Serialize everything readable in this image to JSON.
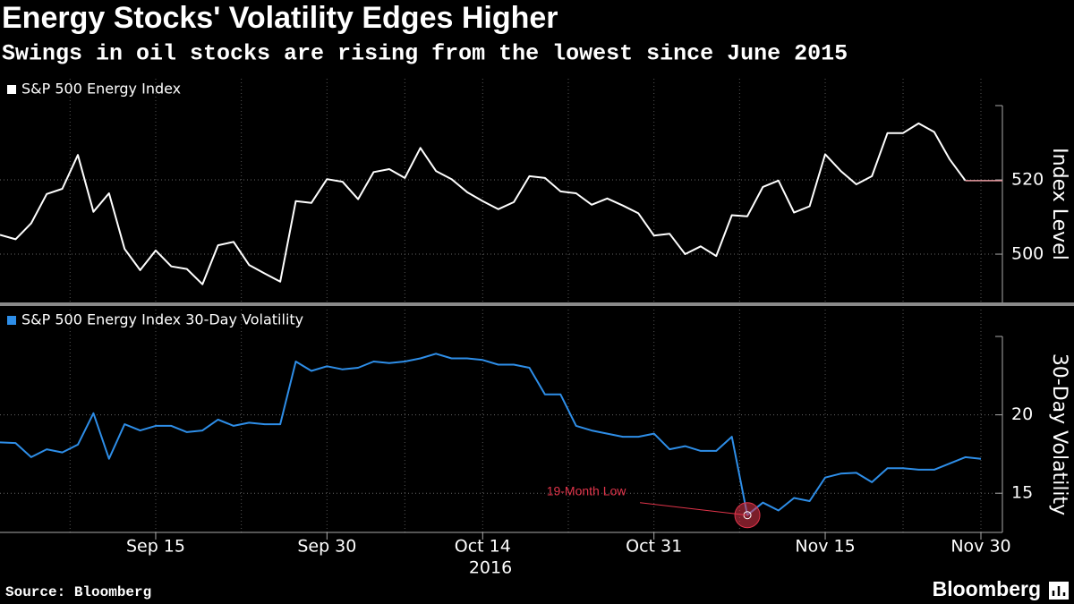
{
  "title": "Energy Stocks' Volatility Edges Higher",
  "subtitle": "Swings in oil stocks are rising from the lowest since June 2015",
  "source": "Source: Bloomberg",
  "brand": "Bloomberg",
  "chart_data": [
    {
      "type": "line",
      "ylabel": "Index Level",
      "categories": [
        null,
        null,
        null,
        null,
        null,
        null,
        null,
        null,
        null,
        null,
        "Sep 15",
        null,
        null,
        null,
        null,
        null,
        null,
        null,
        null,
        null,
        null,
        "Sep 30",
        null,
        null,
        null,
        null,
        null,
        null,
        null,
        null,
        null,
        "Oct 14",
        null,
        null,
        null,
        null,
        null,
        null,
        null,
        null,
        null,
        null,
        "Oct 31",
        null,
        null,
        null,
        null,
        null,
        null,
        null,
        null,
        null,
        null,
        "Nov 15",
        null,
        null,
        null,
        null,
        null,
        null,
        null,
        null,
        null,
        "Nov 30"
      ],
      "series": [
        {
          "name": "S&P 500 Energy Index",
          "color": "#ffffff",
          "values": [
            505.2,
            504,
            508.3,
            516.2,
            517.6,
            526.7,
            511.4,
            516.4,
            501.4,
            495.7,
            501,
            496.7,
            496,
            491.9,
            502.4,
            503.3,
            497.1,
            494.8,
            492.6,
            514.3,
            513.8,
            520.2,
            519.5,
            514.8,
            522.1,
            522.9,
            520.5,
            528.6,
            522.4,
            520.2,
            516.7,
            514.3,
            512.1,
            514,
            521,
            520.5,
            516.9,
            516.4,
            513.3,
            515,
            513.1,
            511,
            505,
            505.5,
            500,
            502.1,
            499.5,
            510.5,
            510.2,
            518.1,
            519.8,
            511.2,
            512.9,
            526.9,
            522.4,
            518.8,
            521,
            532.6,
            532.6,
            535.2,
            532.9,
            525.5,
            519.8,
            null
          ]
        }
      ],
      "ylim": [
        487,
        540
      ],
      "yticks": [
        500,
        520
      ],
      "grid": true,
      "last_value_color": "#e89aa0"
    },
    {
      "type": "line",
      "ylabel": "30-Day Volatility",
      "xlabel": "2016",
      "categories": [
        null,
        null,
        null,
        null,
        null,
        null,
        null,
        null,
        null,
        null,
        "Sep 15",
        null,
        null,
        null,
        null,
        null,
        null,
        null,
        null,
        null,
        null,
        "Sep 30",
        null,
        null,
        null,
        null,
        null,
        null,
        null,
        null,
        null,
        "Oct 14",
        null,
        null,
        null,
        null,
        null,
        null,
        null,
        null,
        null,
        null,
        "Oct 31",
        null,
        null,
        null,
        null,
        null,
        null,
        null,
        null,
        null,
        null,
        "Nov 15",
        null,
        null,
        null,
        null,
        null,
        null,
        null,
        null,
        null,
        "Nov 30"
      ],
      "series": [
        {
          "name": "S&P 500 Energy Index 30-Day Volatility",
          "color": "#2e8ee8",
          "values": [
            18.24,
            18.2,
            17.3,
            17.8,
            17.6,
            18.1,
            20.1,
            17.2,
            19.4,
            19.0,
            19.3,
            19.3,
            18.9,
            19.0,
            19.7,
            19.3,
            19.5,
            19.4,
            19.4,
            23.4,
            22.8,
            23.1,
            22.9,
            23.0,
            23.4,
            23.3,
            23.4,
            23.6,
            23.9,
            23.6,
            23.6,
            23.5,
            23.2,
            23.2,
            23.0,
            21.3,
            21.3,
            19.3,
            19.0,
            18.8,
            18.6,
            18.6,
            18.8,
            17.8,
            18.0,
            17.7,
            17.7,
            18.6,
            13.6,
            14.4,
            13.9,
            14.7,
            14.5,
            16.0,
            16.25,
            16.3,
            15.7,
            16.6,
            16.6,
            16.5,
            16.5,
            16.9,
            17.3,
            17.2
          ]
        }
      ],
      "ylim": [
        12.5,
        25
      ],
      "yticks": [
        15,
        20
      ],
      "grid": true,
      "annotations": [
        {
          "text": "19-Month Low",
          "color": "#e0344a"
        }
      ]
    }
  ]
}
